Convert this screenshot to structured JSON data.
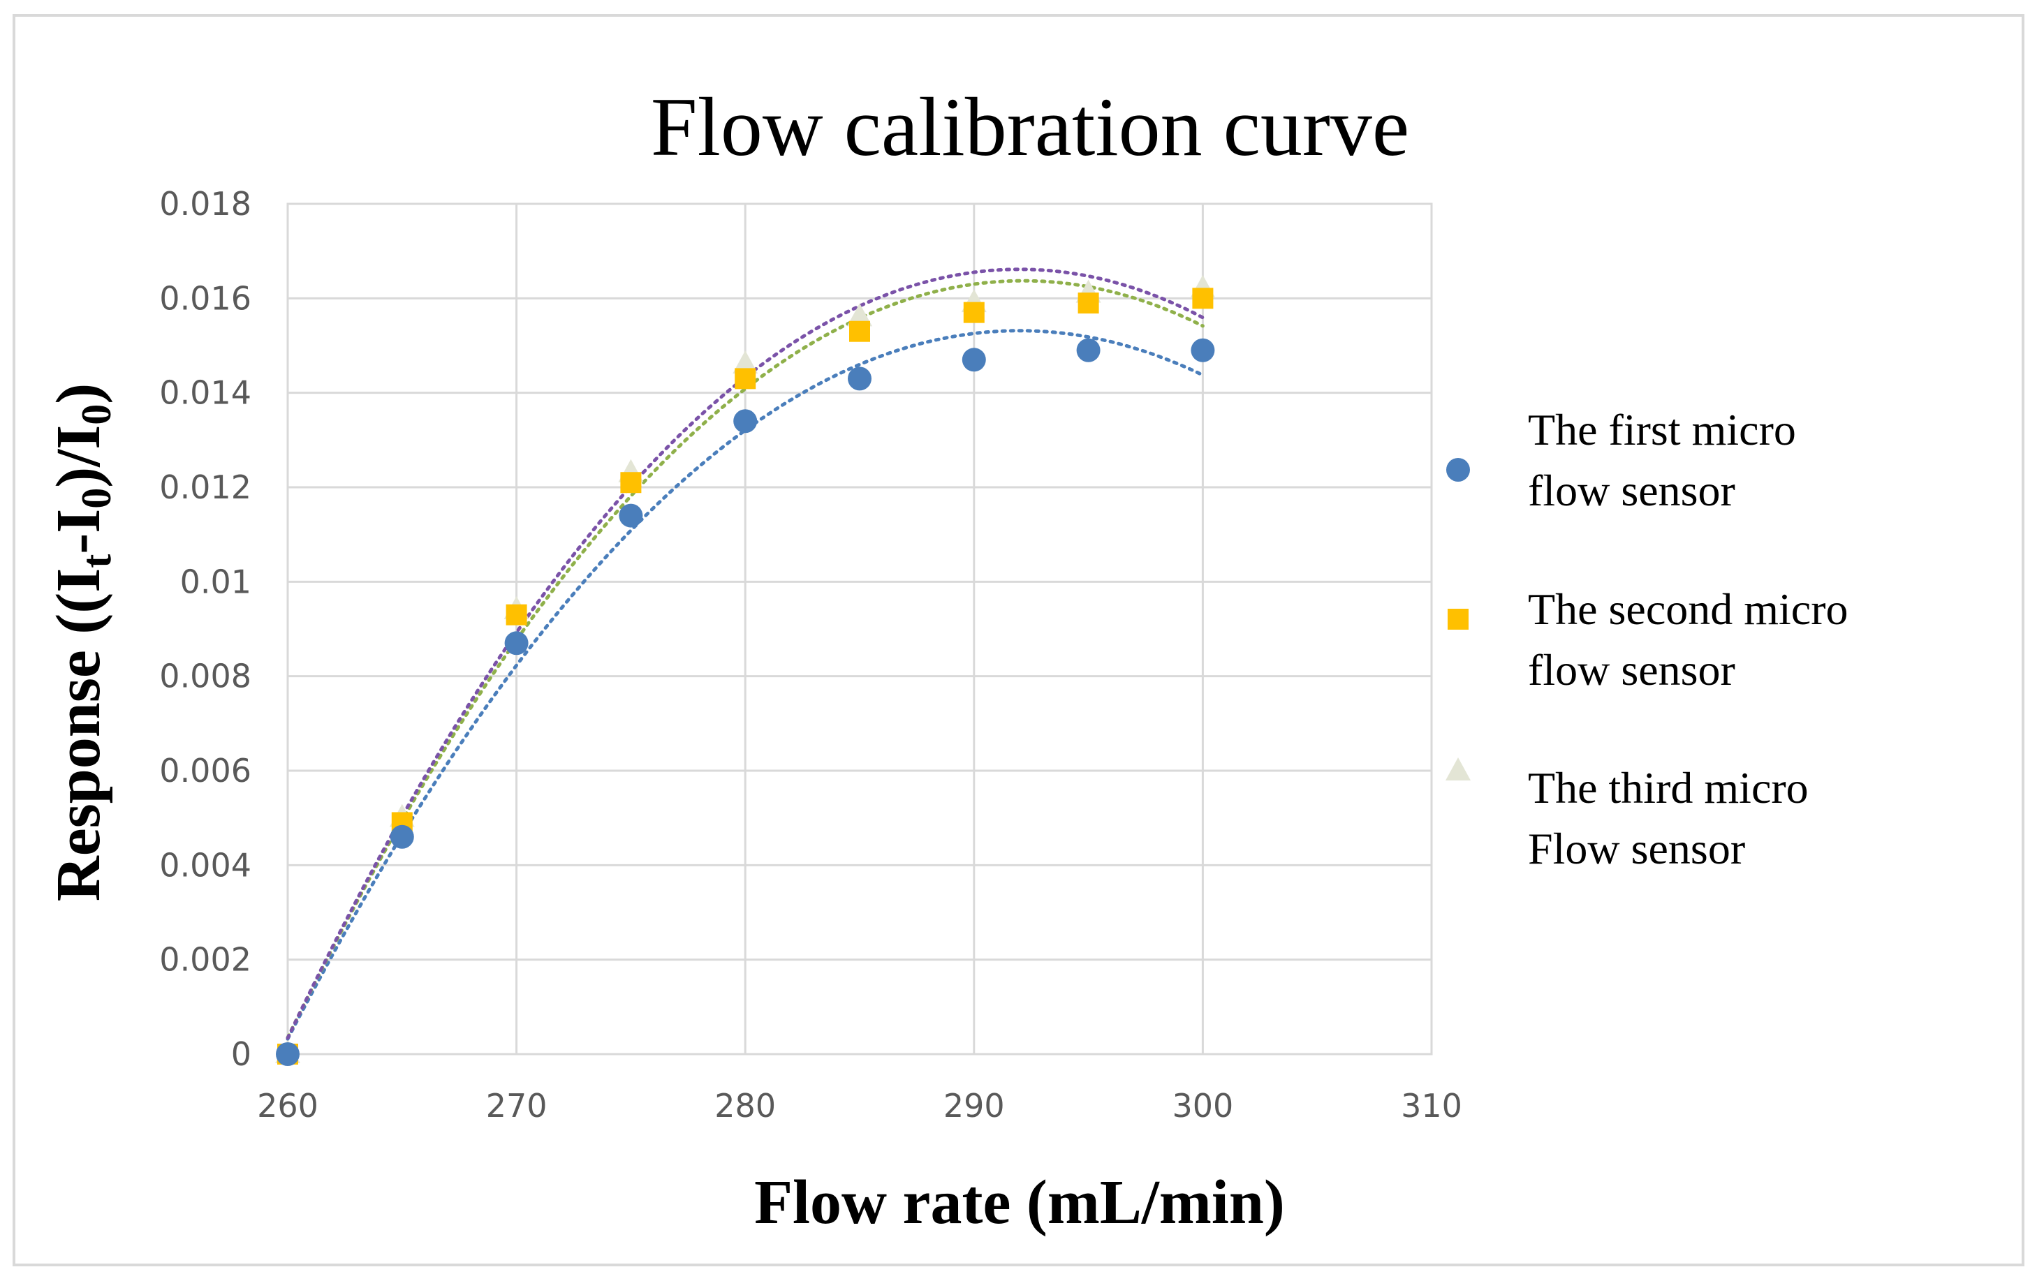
{
  "chart_data": {
    "type": "scatter",
    "title": "Flow calibration curve",
    "xlabel": "Flow rate (mL/min)",
    "ylabel": {
      "prefix": "Response ((I",
      "sub1": "t",
      "mid": "-I",
      "sub2": "0",
      "mid2": ")/I",
      "sub3": "0",
      "suffix": ")"
    },
    "xlim": [
      260,
      310
    ],
    "ylim": [
      0,
      0.018
    ],
    "x_ticks": [
      "260",
      "270",
      "280",
      "290",
      "300",
      "310"
    ],
    "y_ticks": [
      "0",
      "0.002",
      "0.004",
      "0.006",
      "0.008",
      "0.01",
      "0.012",
      "0.014",
      "0.016",
      "0.018"
    ],
    "grid": true,
    "trendline": "polynomial (dotted)",
    "legend_position": "right",
    "x": [
      260,
      265,
      270,
      275,
      280,
      285,
      290,
      295,
      300
    ],
    "series": [
      {
        "name_line1": "The  first micro",
        "name_line2": "flow sensor",
        "marker": "circle",
        "color": "#4a7ebb",
        "trend_color": "#4a7ebb",
        "values": [
          0,
          0.0046,
          0.0087,
          0.0114,
          0.0134,
          0.0143,
          0.0147,
          0.0149,
          0.0149
        ]
      },
      {
        "name_line1": "The  second micro",
        "name_line2": "flow sensor",
        "marker": "square",
        "color": "#ffc000",
        "trend_color": "#8fb04a",
        "values": [
          0,
          0.0049,
          0.0093,
          0.0121,
          0.0143,
          0.0153,
          0.0157,
          0.0159,
          0.016
        ]
      },
      {
        "name_line1": "The  third micro",
        "name_line2": "Flow sensor",
        "marker": "triangle",
        "color": "#e3e5d5",
        "trend_color": "#7a52a8",
        "values": [
          0,
          0.005,
          0.0094,
          0.0123,
          0.0146,
          0.0156,
          0.0159,
          0.0161,
          0.0162
        ]
      }
    ]
  }
}
